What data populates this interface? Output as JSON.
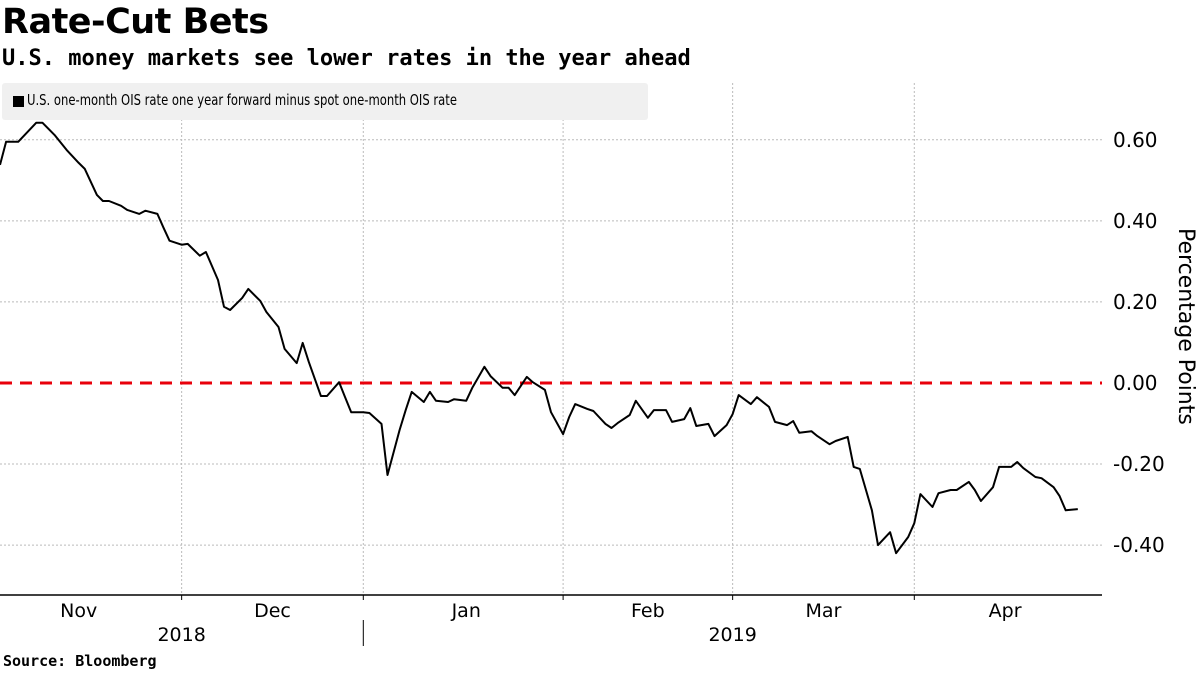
{
  "header": {
    "title": "Rate-Cut Bets",
    "subtitle": "U.S. money markets see lower rates in the year ahead"
  },
  "footer": {
    "source": "Source: Bloomberg"
  },
  "colors": {
    "series": "#000000",
    "zero_line": "#e8000b",
    "grid": "#bbbbbb",
    "legend_bg": "#f0f0f0"
  },
  "chart_data": {
    "type": "line",
    "title": "Rate-Cut Bets",
    "subtitle": "U.S. money markets see lower rates in the year ahead",
    "xlabel": "",
    "ylabel": "Percentage Points",
    "x_units": "days since 2018-11-01",
    "xlim": [
      0,
      182
    ],
    "ylim": [
      -0.523,
      0.74
    ],
    "y_ticks": [
      0.6,
      0.4,
      0.2,
      0.0,
      -0.2,
      -0.4
    ],
    "y_tick_labels": [
      "0.60",
      "0.40",
      "0.20",
      "0.00",
      "-0.20",
      "-0.40"
    ],
    "y_axis_side": "right",
    "grid": true,
    "reference_line": {
      "value": 0.0,
      "style": "dashed",
      "color": "#e8000b"
    },
    "month_boundaries": [
      30,
      60,
      93,
      121,
      151
    ],
    "x_month_labels": [
      {
        "label": "Nov",
        "center": 13
      },
      {
        "label": "Dec",
        "center": 45
      },
      {
        "label": "Jan",
        "center": 77
      },
      {
        "label": "Feb",
        "center": 107
      },
      {
        "label": "Mar",
        "center": 136
      },
      {
        "label": "Apr",
        "center": 166
      }
    ],
    "x_year_labels": [
      {
        "label": "2018",
        "center": 30
      },
      {
        "label": "2019",
        "center": 121
      }
    ],
    "year_divider": 60,
    "legend": {
      "position": "top-left",
      "entries": [
        "U.S. one-month OIS rate one year forward minus spot one-month OIS rate"
      ]
    },
    "series": [
      {
        "name": "U.S. one-month OIS rate one year forward minus spot one-month OIS rate",
        "x": [
          0,
          1,
          3,
          6,
          7,
          9,
          11,
          13,
          14,
          16,
          17,
          18,
          20,
          21,
          23,
          24,
          26,
          27,
          28,
          30,
          31,
          33,
          34,
          36,
          37,
          38,
          40,
          41,
          43,
          44,
          46,
          47,
          49,
          50,
          51,
          53,
          54,
          56,
          57,
          58,
          60,
          61,
          63,
          64,
          66,
          67,
          68,
          70,
          71,
          72,
          74,
          75,
          77,
          78,
          80,
          81,
          83,
          84,
          85,
          87,
          88,
          90,
          91,
          93,
          94,
          95,
          97,
          98,
          100,
          101,
          102,
          104,
          105,
          107,
          108,
          110,
          111,
          113,
          114,
          115,
          117,
          118,
          120,
          121,
          122,
          124,
          125,
          127,
          128,
          130,
          131,
          132,
          134,
          135,
          137,
          138,
          140,
          141,
          142,
          144,
          145,
          147,
          148,
          150,
          151,
          152,
          154,
          155,
          157,
          158,
          160,
          161,
          162,
          164,
          165,
          167,
          168,
          169,
          171,
          172,
          174,
          175,
          176,
          178
        ],
        "values": [
          0.538,
          0.595,
          0.595,
          0.642,
          0.642,
          0.612,
          0.575,
          0.543,
          0.528,
          0.464,
          0.449,
          0.449,
          0.437,
          0.427,
          0.417,
          0.425,
          0.417,
          0.383,
          0.351,
          0.341,
          0.343,
          0.314,
          0.323,
          0.254,
          0.188,
          0.18,
          0.21,
          0.232,
          0.202,
          0.175,
          0.138,
          0.084,
          0.049,
          0.099,
          0.052,
          -0.032,
          -0.032,
          0.002,
          -0.035,
          -0.072,
          -0.072,
          -0.074,
          -0.101,
          -0.227,
          -0.116,
          -0.067,
          -0.022,
          -0.047,
          -0.022,
          -0.044,
          -0.047,
          -0.04,
          -0.044,
          -0.012,
          0.04,
          0.017,
          -0.012,
          -0.012,
          -0.03,
          0.015,
          0.002,
          -0.017,
          -0.072,
          -0.126,
          -0.084,
          -0.052,
          -0.064,
          -0.069,
          -0.101,
          -0.111,
          -0.099,
          -0.079,
          -0.044,
          -0.086,
          -0.067,
          -0.067,
          -0.096,
          -0.089,
          -0.062,
          -0.106,
          -0.101,
          -0.131,
          -0.104,
          -0.077,
          -0.03,
          -0.052,
          -0.035,
          -0.059,
          -0.096,
          -0.104,
          -0.094,
          -0.123,
          -0.119,
          -0.131,
          -0.151,
          -0.143,
          -0.133,
          -0.207,
          -0.212,
          -0.314,
          -0.4,
          -0.368,
          -0.42,
          -0.38,
          -0.346,
          -0.274,
          -0.306,
          -0.272,
          -0.264,
          -0.264,
          -0.244,
          -0.264,
          -0.291,
          -0.257,
          -0.207,
          -0.207,
          -0.195,
          -0.21,
          -0.232,
          -0.235,
          -0.257,
          -0.279,
          -0.314,
          -0.311
        ]
      }
    ]
  }
}
